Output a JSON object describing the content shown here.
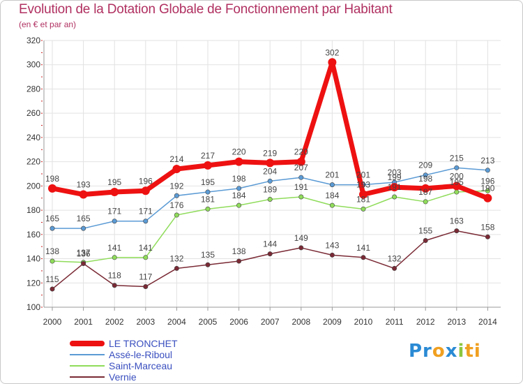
{
  "title": "Evolution de la Dotation Globale de Fonctionnement par Habitant",
  "subtitle": "(en € et par an)",
  "logo": {
    "parts": [
      {
        "text": "Pr",
        "color": "#2a8ad4"
      },
      {
        "text": "o",
        "color": "#f0a020"
      },
      {
        "text": "x",
        "color": "#2a8ad4"
      },
      {
        "text": "i",
        "color": "#8cc63f"
      },
      {
        "text": "ti",
        "color": "#f0a020"
      }
    ]
  },
  "chart_data": {
    "type": "line",
    "title": "Evolution de la Dotation Globale de Fonctionnement par Habitant",
    "subtitle": "(en € et par an)",
    "xlabel": "",
    "ylabel": "",
    "x": [
      2000,
      2001,
      2002,
      2003,
      2004,
      2005,
      2006,
      2007,
      2008,
      2009,
      2010,
      2011,
      2012,
      2013,
      2014
    ],
    "ylim": [
      100,
      320
    ],
    "yticks": [
      100,
      120,
      140,
      160,
      180,
      200,
      220,
      240,
      260,
      280,
      300,
      320
    ],
    "grid": true,
    "legend_position": "bottom-left",
    "series": [
      {
        "name": "LE TRONCHET",
        "color": "#ee1111",
        "emphasis": true,
        "values": [
          198,
          193,
          195,
          196,
          214,
          217,
          220,
          219,
          220,
          302,
          193,
          199,
          198,
          200,
          190
        ]
      },
      {
        "name": "Assé-le-Riboul",
        "color": "#5b9bd5",
        "emphasis": false,
        "values": [
          165,
          165,
          171,
          171,
          192,
          195,
          198,
          204,
          207,
          201,
          201,
          203,
          209,
          215,
          213
        ]
      },
      {
        "name": "Saint-Marceau",
        "color": "#8fdc5a",
        "emphasis": false,
        "values": [
          138,
          137,
          141,
          141,
          176,
          181,
          184,
          189,
          191,
          184,
          181,
          191,
          187,
          195,
          196
        ]
      },
      {
        "name": "Vernie",
        "color": "#7a2a35",
        "emphasis": false,
        "values": [
          115,
          136,
          118,
          117,
          132,
          135,
          138,
          144,
          149,
          143,
          141,
          132,
          155,
          163,
          158
        ]
      }
    ]
  }
}
